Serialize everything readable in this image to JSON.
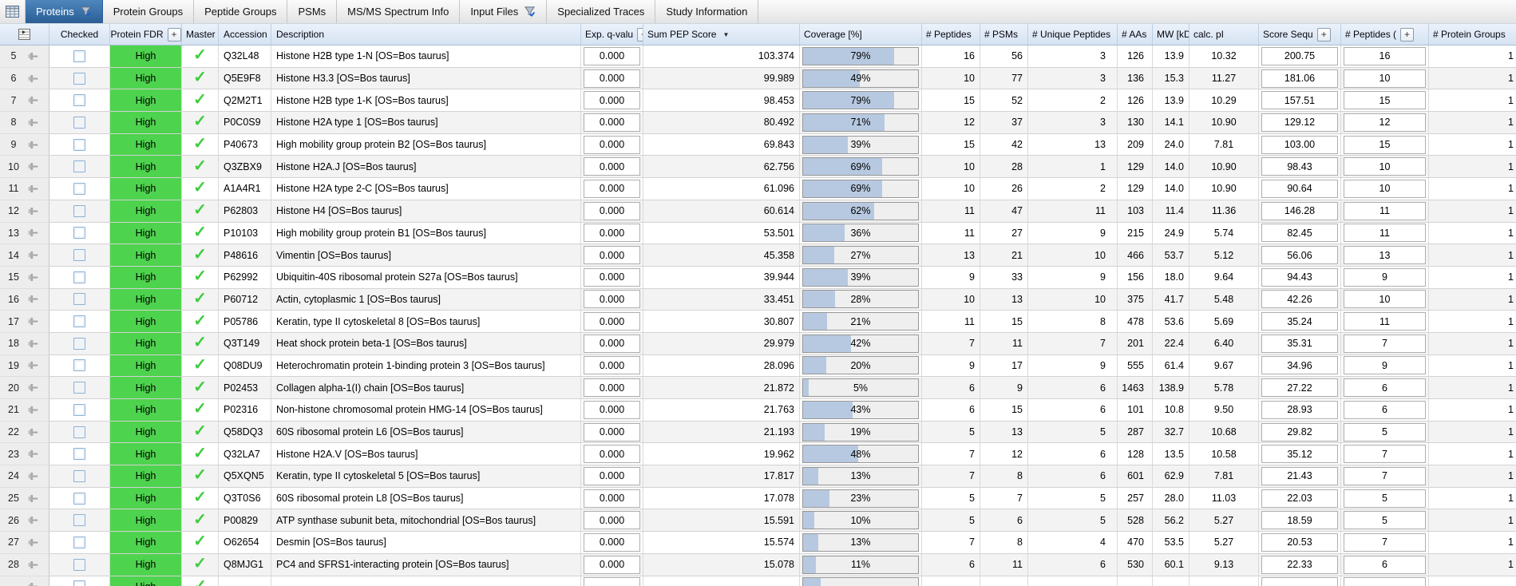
{
  "colors": {
    "active_tab_blue": "#2e6da4",
    "header_blue": "#dce6f2",
    "confidence_green": "#4ed34e",
    "master_check_green": "#3ecc3e",
    "coverage_fill_blue": "#b7c9e0"
  },
  "tabs": [
    {
      "label": "Proteins",
      "active": true,
      "filter": true
    },
    {
      "label": "Protein Groups",
      "active": false,
      "filter": false
    },
    {
      "label": "Peptide Groups",
      "active": false,
      "filter": false
    },
    {
      "label": "PSMs",
      "active": false,
      "filter": false
    },
    {
      "label": "MS/MS Spectrum Info",
      "active": false,
      "filter": false
    },
    {
      "label": "Input Files",
      "active": false,
      "filter": true
    },
    {
      "label": "Specialized Traces",
      "active": false,
      "filter": false
    },
    {
      "label": "Study Information",
      "active": false,
      "filter": false
    }
  ],
  "table": {
    "columns": {
      "checked": "Checked",
      "fdr": "Protein FDR",
      "master": "Master",
      "accession": "Accession",
      "description": "Description",
      "q_value": "Exp. q-valu",
      "sum_pep": "Sum PEP Score",
      "coverage": "Coverage [%]",
      "peptides": "# Peptides",
      "psms": "# PSMs",
      "unique": "# Unique Peptides",
      "aas": "# AAs",
      "mw": "MW [kDa]",
      "calc_pi": "calc. pI",
      "score": "Score Sequ",
      "peptides2": "# Peptides (",
      "groups": "# Protein Groups"
    },
    "plus_glyph": "+",
    "sort_glyph": "▼",
    "rows": [
      {
        "num": "5",
        "confidence": "High",
        "accession": "Q32L48",
        "description": "Histone H2B type 1-N [OS=Bos taurus]",
        "q_value": "0.000",
        "sum_pep": "103.374",
        "coverage": 79,
        "coverage_text": "79%",
        "peptides": "16",
        "psms": "56",
        "unique": "3",
        "aas": "126",
        "mw": "13.9",
        "calc_pi": "10.32",
        "score": "200.75",
        "peptides2": "16",
        "groups": "1"
      },
      {
        "num": "6",
        "confidence": "High",
        "accession": "Q5E9F8",
        "description": "Histone H3.3 [OS=Bos taurus]",
        "q_value": "0.000",
        "sum_pep": "99.989",
        "coverage": 49,
        "coverage_text": "49%",
        "peptides": "10",
        "psms": "77",
        "unique": "3",
        "aas": "136",
        "mw": "15.3",
        "calc_pi": "11.27",
        "score": "181.06",
        "peptides2": "10",
        "groups": "1"
      },
      {
        "num": "7",
        "confidence": "High",
        "accession": "Q2M2T1",
        "description": "Histone H2B type 1-K [OS=Bos taurus]",
        "q_value": "0.000",
        "sum_pep": "98.453",
        "coverage": 79,
        "coverage_text": "79%",
        "peptides": "15",
        "psms": "52",
        "unique": "2",
        "aas": "126",
        "mw": "13.9",
        "calc_pi": "10.29",
        "score": "157.51",
        "peptides2": "15",
        "groups": "1"
      },
      {
        "num": "8",
        "confidence": "High",
        "accession": "P0C0S9",
        "description": "Histone H2A type 1 [OS=Bos taurus]",
        "q_value": "0.000",
        "sum_pep": "80.492",
        "coverage": 71,
        "coverage_text": "71%",
        "peptides": "12",
        "psms": "37",
        "unique": "3",
        "aas": "130",
        "mw": "14.1",
        "calc_pi": "10.90",
        "score": "129.12",
        "peptides2": "12",
        "groups": "1"
      },
      {
        "num": "9",
        "confidence": "High",
        "accession": "P40673",
        "description": "High mobility group protein B2 [OS=Bos taurus]",
        "q_value": "0.000",
        "sum_pep": "69.843",
        "coverage": 39,
        "coverage_text": "39%",
        "peptides": "15",
        "psms": "42",
        "unique": "13",
        "aas": "209",
        "mw": "24.0",
        "calc_pi": "7.81",
        "score": "103.00",
        "peptides2": "15",
        "groups": "1"
      },
      {
        "num": "10",
        "confidence": "High",
        "accession": "Q3ZBX9",
        "description": "Histone H2A.J [OS=Bos taurus]",
        "q_value": "0.000",
        "sum_pep": "62.756",
        "coverage": 69,
        "coverage_text": "69%",
        "peptides": "10",
        "psms": "28",
        "unique": "1",
        "aas": "129",
        "mw": "14.0",
        "calc_pi": "10.90",
        "score": "98.43",
        "peptides2": "10",
        "groups": "1"
      },
      {
        "num": "11",
        "confidence": "High",
        "accession": "A1A4R1",
        "description": "Histone H2A type 2-C [OS=Bos taurus]",
        "q_value": "0.000",
        "sum_pep": "61.096",
        "coverage": 69,
        "coverage_text": "69%",
        "peptides": "10",
        "psms": "26",
        "unique": "2",
        "aas": "129",
        "mw": "14.0",
        "calc_pi": "10.90",
        "score": "90.64",
        "peptides2": "10",
        "groups": "1"
      },
      {
        "num": "12",
        "confidence": "High",
        "accession": "P62803",
        "description": "Histone H4 [OS=Bos taurus]",
        "q_value": "0.000",
        "sum_pep": "60.614",
        "coverage": 62,
        "coverage_text": "62%",
        "peptides": "11",
        "psms": "47",
        "unique": "11",
        "aas": "103",
        "mw": "11.4",
        "calc_pi": "11.36",
        "score": "146.28",
        "peptides2": "11",
        "groups": "1"
      },
      {
        "num": "13",
        "confidence": "High",
        "accession": "P10103",
        "description": "High mobility group protein B1 [OS=Bos taurus]",
        "q_value": "0.000",
        "sum_pep": "53.501",
        "coverage": 36,
        "coverage_text": "36%",
        "peptides": "11",
        "psms": "27",
        "unique": "9",
        "aas": "215",
        "mw": "24.9",
        "calc_pi": "5.74",
        "score": "82.45",
        "peptides2": "11",
        "groups": "1"
      },
      {
        "num": "14",
        "confidence": "High",
        "accession": "P48616",
        "description": "Vimentin [OS=Bos taurus]",
        "q_value": "0.000",
        "sum_pep": "45.358",
        "coverage": 27,
        "coverage_text": "27%",
        "peptides": "13",
        "psms": "21",
        "unique": "10",
        "aas": "466",
        "mw": "53.7",
        "calc_pi": "5.12",
        "score": "56.06",
        "peptides2": "13",
        "groups": "1"
      },
      {
        "num": "15",
        "confidence": "High",
        "accession": "P62992",
        "description": "Ubiquitin-40S ribosomal protein S27a [OS=Bos taurus]",
        "q_value": "0.000",
        "sum_pep": "39.944",
        "coverage": 39,
        "coverage_text": "39%",
        "peptides": "9",
        "psms": "33",
        "unique": "9",
        "aas": "156",
        "mw": "18.0",
        "calc_pi": "9.64",
        "score": "94.43",
        "peptides2": "9",
        "groups": "1"
      },
      {
        "num": "16",
        "confidence": "High",
        "accession": "P60712",
        "description": "Actin, cytoplasmic 1 [OS=Bos taurus]",
        "q_value": "0.000",
        "sum_pep": "33.451",
        "coverage": 28,
        "coverage_text": "28%",
        "peptides": "10",
        "psms": "13",
        "unique": "10",
        "aas": "375",
        "mw": "41.7",
        "calc_pi": "5.48",
        "score": "42.26",
        "peptides2": "10",
        "groups": "1"
      },
      {
        "num": "17",
        "confidence": "High",
        "accession": "P05786",
        "description": "Keratin, type II cytoskeletal 8 [OS=Bos taurus]",
        "q_value": "0.000",
        "sum_pep": "30.807",
        "coverage": 21,
        "coverage_text": "21%",
        "peptides": "11",
        "psms": "15",
        "unique": "8",
        "aas": "478",
        "mw": "53.6",
        "calc_pi": "5.69",
        "score": "35.24",
        "peptides2": "11",
        "groups": "1"
      },
      {
        "num": "18",
        "confidence": "High",
        "accession": "Q3T149",
        "description": "Heat shock protein beta-1 [OS=Bos taurus]",
        "q_value": "0.000",
        "sum_pep": "29.979",
        "coverage": 42,
        "coverage_text": "42%",
        "peptides": "7",
        "psms": "11",
        "unique": "7",
        "aas": "201",
        "mw": "22.4",
        "calc_pi": "6.40",
        "score": "35.31",
        "peptides2": "7",
        "groups": "1"
      },
      {
        "num": "19",
        "confidence": "High",
        "accession": "Q08DU9",
        "description": "Heterochromatin protein 1-binding protein 3 [OS=Bos taurus]",
        "q_value": "0.000",
        "sum_pep": "28.096",
        "coverage": 20,
        "coverage_text": "20%",
        "peptides": "9",
        "psms": "17",
        "unique": "9",
        "aas": "555",
        "mw": "61.4",
        "calc_pi": "9.67",
        "score": "34.96",
        "peptides2": "9",
        "groups": "1"
      },
      {
        "num": "20",
        "confidence": "High",
        "accession": "P02453",
        "description": "Collagen alpha-1(I) chain [OS=Bos taurus]",
        "q_value": "0.000",
        "sum_pep": "21.872",
        "coverage": 5,
        "coverage_text": "5%",
        "peptides": "6",
        "psms": "9",
        "unique": "6",
        "aas": "1463",
        "mw": "138.9",
        "calc_pi": "5.78",
        "score": "27.22",
        "peptides2": "6",
        "groups": "1"
      },
      {
        "num": "21",
        "confidence": "High",
        "accession": "P02316",
        "description": "Non-histone chromosomal protein HMG-14 [OS=Bos taurus]",
        "q_value": "0.000",
        "sum_pep": "21.763",
        "coverage": 43,
        "coverage_text": "43%",
        "peptides": "6",
        "psms": "15",
        "unique": "6",
        "aas": "101",
        "mw": "10.8",
        "calc_pi": "9.50",
        "score": "28.93",
        "peptides2": "6",
        "groups": "1"
      },
      {
        "num": "22",
        "confidence": "High",
        "accession": "Q58DQ3",
        "description": "60S ribosomal protein L6 [OS=Bos taurus]",
        "q_value": "0.000",
        "sum_pep": "21.193",
        "coverage": 19,
        "coverage_text": "19%",
        "peptides": "5",
        "psms": "13",
        "unique": "5",
        "aas": "287",
        "mw": "32.7",
        "calc_pi": "10.68",
        "score": "29.82",
        "peptides2": "5",
        "groups": "1"
      },
      {
        "num": "23",
        "confidence": "High",
        "accession": "Q32LA7",
        "description": "Histone H2A.V [OS=Bos taurus]",
        "q_value": "0.000",
        "sum_pep": "19.962",
        "coverage": 48,
        "coverage_text": "48%",
        "peptides": "7",
        "psms": "12",
        "unique": "6",
        "aas": "128",
        "mw": "13.5",
        "calc_pi": "10.58",
        "score": "35.12",
        "peptides2": "7",
        "groups": "1"
      },
      {
        "num": "24",
        "confidence": "High",
        "accession": "Q5XQN5",
        "description": "Keratin, type II cytoskeletal 5 [OS=Bos taurus]",
        "q_value": "0.000",
        "sum_pep": "17.817",
        "coverage": 13,
        "coverage_text": "13%",
        "peptides": "7",
        "psms": "8",
        "unique": "6",
        "aas": "601",
        "mw": "62.9",
        "calc_pi": "7.81",
        "score": "21.43",
        "peptides2": "7",
        "groups": "1"
      },
      {
        "num": "25",
        "confidence": "High",
        "accession": "Q3T0S6",
        "description": "60S ribosomal protein L8 [OS=Bos taurus]",
        "q_value": "0.000",
        "sum_pep": "17.078",
        "coverage": 23,
        "coverage_text": "23%",
        "peptides": "5",
        "psms": "7",
        "unique": "5",
        "aas": "257",
        "mw": "28.0",
        "calc_pi": "11.03",
        "score": "22.03",
        "peptides2": "5",
        "groups": "1"
      },
      {
        "num": "26",
        "confidence": "High",
        "accession": "P00829",
        "description": "ATP synthase subunit beta, mitochondrial [OS=Bos taurus]",
        "q_value": "0.000",
        "sum_pep": "15.591",
        "coverage": 10,
        "coverage_text": "10%",
        "peptides": "5",
        "psms": "6",
        "unique": "5",
        "aas": "528",
        "mw": "56.2",
        "calc_pi": "5.27",
        "score": "18.59",
        "peptides2": "5",
        "groups": "1"
      },
      {
        "num": "27",
        "confidence": "High",
        "accession": "O62654",
        "description": "Desmin [OS=Bos taurus]",
        "q_value": "0.000",
        "sum_pep": "15.574",
        "coverage": 13,
        "coverage_text": "13%",
        "peptides": "7",
        "psms": "8",
        "unique": "4",
        "aas": "470",
        "mw": "53.5",
        "calc_pi": "5.27",
        "score": "20.53",
        "peptides2": "7",
        "groups": "1"
      },
      {
        "num": "28",
        "confidence": "High",
        "accession": "Q8MJG1",
        "description": "PC4 and SFRS1-interacting protein [OS=Bos taurus]",
        "q_value": "0.000",
        "sum_pep": "15.078",
        "coverage": 11,
        "coverage_text": "11%",
        "peptides": "6",
        "psms": "11",
        "unique": "6",
        "aas": "530",
        "mw": "60.1",
        "calc_pi": "9.13",
        "score": "22.33",
        "peptides2": "6",
        "groups": "1"
      },
      {
        "num": "",
        "confidence": "High",
        "accession": "",
        "description": "",
        "q_value": "",
        "sum_pep": "",
        "coverage": 15,
        "coverage_text": "",
        "peptides": "",
        "psms": "",
        "unique": "",
        "aas": "",
        "mw": "",
        "calc_pi": "",
        "score": "",
        "peptides2": "",
        "groups": ""
      }
    ]
  }
}
